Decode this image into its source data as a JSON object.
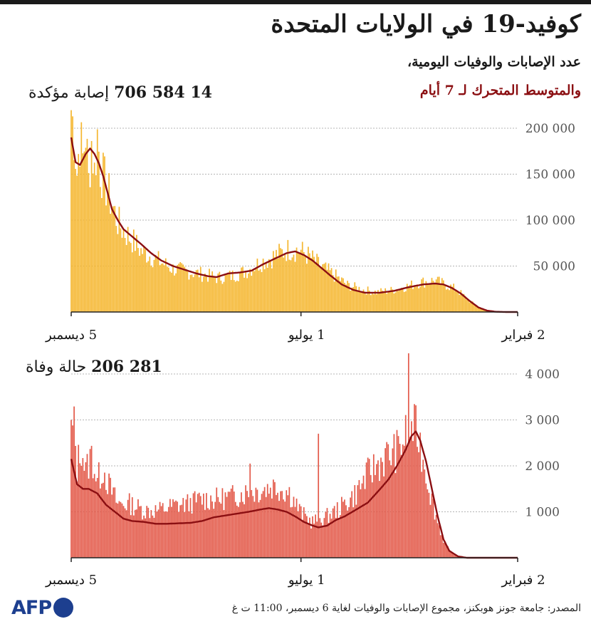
{
  "title": "كوفيد-19 في الولايات المتحدة",
  "subtitle": "عدد الإصابات والوفيات اليومية،",
  "moving_average_label": "والمتوسط المتحرك لـ 7 أيام",
  "cases": {
    "total": "14 584 706",
    "label": "إصابة مؤكدة"
  },
  "deaths": {
    "total": "281 206",
    "label": "حالة وفاة"
  },
  "source": "المصدر: جامعة جونز هوبكنز، مجموع الإصابات والوفيات لغاية 6 ديسمبر، 11:00 ت غ",
  "logo": "AFP",
  "colors": {
    "cases_bars": "#f5b731",
    "deaths_bars": "#e35a4a",
    "moving_average": "#8b0f12",
    "grid": "#b5b5b5",
    "axis": "#222222"
  },
  "chart_data": [
    {
      "type": "bar",
      "title": "إصابة مؤكدة",
      "x_direction": "right-to-left (newest date on the left)",
      "x_ticks": [
        "5 ديسمبر",
        "1 يوليو",
        "2 فبراير"
      ],
      "x_tick_days_before_latest": [
        0,
        158,
        307
      ],
      "y_ticks": [
        "50 000",
        "100 000",
        "150 000",
        "200 000"
      ],
      "y_tick_values": [
        50000,
        100000,
        150000,
        200000
      ],
      "ylim": [
        0,
        200000
      ],
      "grid": true,
      "series": [
        {
          "style": "bars",
          "x": "days before 5 ديسمبر",
          "values_days_before_latest": [
            [
              0,
              225000
            ],
            [
              1,
              212000
            ],
            [
              2,
              200000
            ],
            [
              4,
              155000
            ],
            [
              6,
              195000
            ],
            [
              8,
              170000
            ],
            [
              10,
              200000
            ],
            [
              12,
              145000
            ],
            [
              14,
              190000
            ],
            [
              16,
              155000
            ],
            [
              18,
              198000
            ],
            [
              20,
              160000
            ],
            [
              22,
              150000
            ],
            [
              25,
              135000
            ],
            [
              28,
              120000
            ],
            [
              32,
              100000
            ],
            [
              36,
              90000
            ],
            [
              42,
              80000
            ],
            [
              48,
              68000
            ],
            [
              55,
              62000
            ],
            [
              62,
              55000
            ],
            [
              70,
              48000
            ],
            [
              80,
              45000
            ],
            [
              90,
              42000
            ],
            [
              100,
              38000
            ],
            [
              110,
              40000
            ],
            [
              120,
              45000
            ],
            [
              130,
              55000
            ],
            [
              140,
              62000
            ],
            [
              150,
              70000
            ],
            [
              158,
              68000
            ],
            [
              165,
              60000
            ],
            [
              172,
              50000
            ],
            [
              180,
              42000
            ],
            [
              190,
              30000
            ],
            [
              200,
              25000
            ],
            [
              210,
              22000
            ],
            [
              220,
              24000
            ],
            [
              230,
              28000
            ],
            [
              240,
              33000
            ],
            [
              250,
              35000
            ],
            [
              258,
              30000
            ],
            [
              265,
              25000
            ],
            [
              272,
              15000
            ],
            [
              279,
              6000
            ],
            [
              285,
              2000
            ],
            [
              292,
              300
            ],
            [
              307,
              0
            ]
          ]
        },
        {
          "style": "line",
          "name": "المتوسط المتحرك لـ 7 أيام",
          "values_days_before_latest": [
            [
              0,
              190000
            ],
            [
              3,
              163000
            ],
            [
              6,
              160000
            ],
            [
              10,
              172000
            ],
            [
              13,
              178000
            ],
            [
              16,
              172000
            ],
            [
              19,
              162000
            ],
            [
              22,
              148000
            ],
            [
              25,
              130000
            ],
            [
              28,
              112000
            ],
            [
              32,
              100000
            ],
            [
              36,
              90000
            ],
            [
              42,
              82000
            ],
            [
              48,
              74000
            ],
            [
              55,
              64000
            ],
            [
              62,
              56000
            ],
            [
              70,
              50000
            ],
            [
              78,
              46000
            ],
            [
              86,
              42000
            ],
            [
              94,
              39000
            ],
            [
              100,
              38000
            ],
            [
              108,
              42000
            ],
            [
              116,
              43000
            ],
            [
              124,
              45000
            ],
            [
              132,
              52000
            ],
            [
              140,
              58000
            ],
            [
              148,
              64000
            ],
            [
              154,
              66000
            ],
            [
              160,
              62000
            ],
            [
              166,
              56000
            ],
            [
              172,
              48000
            ],
            [
              178,
              40000
            ],
            [
              186,
              30000
            ],
            [
              194,
              24000
            ],
            [
              202,
              21000
            ],
            [
              212,
              21000
            ],
            [
              222,
              23000
            ],
            [
              232,
              27000
            ],
            [
              242,
              30000
            ],
            [
              250,
              31000
            ],
            [
              256,
              30000
            ],
            [
              262,
              26000
            ],
            [
              268,
              20000
            ],
            [
              274,
              12000
            ],
            [
              280,
              5000
            ],
            [
              286,
              1500
            ],
            [
              292,
              300
            ],
            [
              300,
              0
            ],
            [
              307,
              0
            ]
          ]
        }
      ]
    },
    {
      "type": "bar",
      "title": "حالة وفاة",
      "x_direction": "right-to-left (newest date on the left)",
      "x_ticks": [
        "5 ديسمبر",
        "1 يوليو",
        "2 فبراير"
      ],
      "x_tick_days_before_latest": [
        0,
        158,
        307
      ],
      "y_ticks": [
        "1 000",
        "2 000",
        "3 000",
        "4 000"
      ],
      "y_tick_values": [
        1000,
        2000,
        3000,
        4000
      ],
      "ylim": [
        0,
        4000
      ],
      "grid": true,
      "series": [
        {
          "style": "bars",
          "x": "days before 5 ديسمبر",
          "values_days_before_latest": [
            [
              0,
              2800
            ],
            [
              2,
              2900
            ],
            [
              4,
              2000
            ],
            [
              7,
              2500
            ],
            [
              10,
              1900
            ],
            [
              14,
              2300
            ],
            [
              18,
              1700
            ],
            [
              22,
              2000
            ],
            [
              26,
              1600
            ],
            [
              32,
              1200
            ],
            [
              40,
              1200
            ],
            [
              50,
              1050
            ],
            [
              60,
              1050
            ],
            [
              70,
              1150
            ],
            [
              80,
              1200
            ],
            [
              90,
              1300
            ],
            [
              100,
              1300
            ],
            [
              110,
              1350
            ],
            [
              120,
              1450
            ],
            [
              130,
              1500
            ],
            [
              140,
              1600
            ],
            [
              150,
              1450
            ],
            [
              158,
              1000
            ],
            [
              165,
              800
            ],
            [
              175,
              900
            ],
            [
              185,
              1100
            ],
            [
              195,
              1400
            ],
            [
              205,
              1900
            ],
            [
              215,
              2200
            ],
            [
              225,
              2400
            ],
            [
              230,
              2700
            ],
            [
              234,
              2900
            ],
            [
              238,
              2800
            ],
            [
              240,
              2500
            ],
            [
              244,
              1900
            ],
            [
              248,
              1300
            ],
            [
              252,
              800
            ],
            [
              256,
              400
            ],
            [
              260,
              150
            ],
            [
              266,
              30
            ],
            [
              275,
              0
            ],
            [
              307,
              0
            ]
          ]
        },
        {
          "style": "line",
          "name": "المتوسط المتحرك لـ 7 أيام",
          "values_days_before_latest": [
            [
              0,
              2150
            ],
            [
              4,
              1600
            ],
            [
              8,
              1500
            ],
            [
              12,
              1500
            ],
            [
              18,
              1400
            ],
            [
              24,
              1150
            ],
            [
              30,
              1000
            ],
            [
              36,
              850
            ],
            [
              42,
              800
            ],
            [
              50,
              780
            ],
            [
              58,
              740
            ],
            [
              66,
              740
            ],
            [
              74,
              750
            ],
            [
              82,
              760
            ],
            [
              90,
              800
            ],
            [
              98,
              880
            ],
            [
              106,
              920
            ],
            [
              114,
              960
            ],
            [
              122,
              1000
            ],
            [
              130,
              1050
            ],
            [
              136,
              1080
            ],
            [
              142,
              1050
            ],
            [
              148,
              1000
            ],
            [
              154,
              900
            ],
            [
              160,
              780
            ],
            [
              166,
              700
            ],
            [
              170,
              660
            ],
            [
              176,
              700
            ],
            [
              182,
              820
            ],
            [
              188,
              900
            ],
            [
              196,
              1050
            ],
            [
              204,
              1200
            ],
            [
              212,
              1480
            ],
            [
              218,
              1700
            ],
            [
              224,
              2000
            ],
            [
              230,
              2350
            ],
            [
              234,
              2650
            ],
            [
              237,
              2750
            ],
            [
              240,
              2550
            ],
            [
              244,
              2100
            ],
            [
              248,
              1500
            ],
            [
              252,
              900
            ],
            [
              256,
              400
            ],
            [
              260,
              150
            ],
            [
              266,
              30
            ],
            [
              272,
              0
            ],
            [
              307,
              0
            ]
          ]
        }
      ]
    }
  ]
}
